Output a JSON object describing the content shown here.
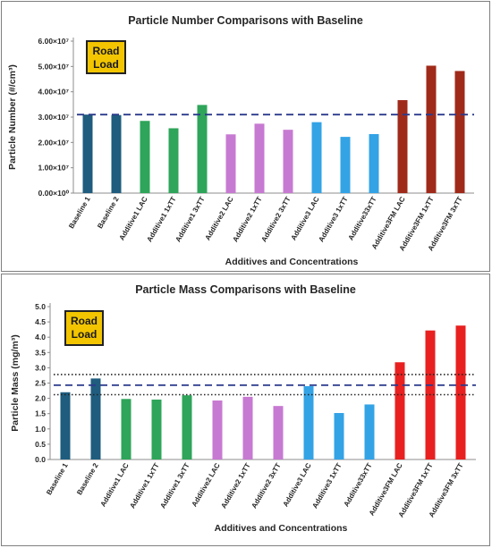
{
  "chart_data": [
    {
      "type": "bar",
      "title": "Particle Number Comparisons with Baseline",
      "xlabel": "Additives and Concentrations",
      "ylabel": "Particle Number (#/cm³)",
      "ylim": [
        0,
        60000000
      ],
      "y_ticks": [
        0,
        10000000,
        20000000,
        30000000,
        40000000,
        50000000,
        60000000
      ],
      "y_tick_labels": [
        "0.00×10⁰",
        "1.00×10⁷",
        "2.00×10⁷",
        "3.00×10⁷",
        "4.00×10⁷",
        "5.00×10⁷",
        "6.00×10⁷"
      ],
      "categories": [
        "Baseline 1",
        "Baseline 2",
        "Additive1 LAC",
        "Additive1 1xTT",
        "Additive1 3xTT",
        "Additive2 LAC",
        "Additive2 1xTT",
        "Additive2 3xTT",
        "Additive3 LAC",
        "Additive3 1xTT",
        "Additive33xTT",
        "Additive3FM LAC",
        "Additive3FM 1xTT",
        "Additive3FM 3xTT"
      ],
      "values": [
        31000000,
        30800000,
        28500000,
        25600000,
        34800000,
        23200000,
        27400000,
        25000000,
        28000000,
        22200000,
        23300000,
        36700000,
        50300000,
        48200000
      ],
      "colors": [
        "#1f5c7e",
        "#1f5c7e",
        "#2ea55a",
        "#2ea55a",
        "#2ea55a",
        "#c77ad1",
        "#c77ad1",
        "#c77ad1",
        "#33a3e6",
        "#33a3e6",
        "#33a3e6",
        "#a02a1a",
        "#a02a1a",
        "#a02a1a"
      ],
      "reference_lines": [
        {
          "value": 31000000,
          "style": "dashed",
          "color": "#2b3a8c"
        }
      ],
      "badge": {
        "line1": "Road",
        "line2": "Load",
        "fill": "#f2c500"
      },
      "grid": false
    },
    {
      "type": "bar",
      "title": "Particle Mass Comparisons with Baseline",
      "xlabel": "Additives and Concentrations",
      "ylabel": "Particle Mass (mg/m³)",
      "ylim": [
        0,
        5.0
      ],
      "y_ticks": [
        0,
        0.5,
        1.0,
        1.5,
        2.0,
        2.5,
        3.0,
        3.5,
        4.0,
        4.5,
        5.0
      ],
      "y_tick_labels": [
        "0.0",
        "0.5",
        "1.0",
        "1.5",
        "2.0",
        "2.5",
        "3.0",
        "3.5",
        "4.0",
        "4.5",
        "5.0"
      ],
      "categories": [
        "Baseline 1",
        "Baseline 2",
        "Additive1 LAC",
        "Additive1 1xTT",
        "Additive1 3xTT",
        "Additive2 LAC",
        "Additive2 1xTT",
        "Additive2 3xTT",
        "Additive3 LAC",
        "Additive3 1xTT",
        "Additive33xTT",
        "Additive3FM LAC",
        "Additive3FM 1xTT",
        "Additive3FM 3xTT"
      ],
      "values": [
        2.2,
        2.65,
        1.98,
        1.96,
        2.1,
        1.93,
        2.05,
        1.75,
        2.4,
        1.52,
        1.8,
        3.18,
        4.22,
        4.38
      ],
      "colors": [
        "#1f5c7e",
        "#1f5c7e",
        "#2ea55a",
        "#2ea55a",
        "#2ea55a",
        "#c77ad1",
        "#c77ad1",
        "#c77ad1",
        "#33a3e6",
        "#33a3e6",
        "#33a3e6",
        "#e82020",
        "#e82020",
        "#e82020"
      ],
      "reference_lines": [
        {
          "value": 2.43,
          "style": "dashed",
          "color": "#2b3a8c"
        },
        {
          "value": 2.78,
          "style": "dotted",
          "color": "#222222"
        },
        {
          "value": 2.12,
          "style": "dotted",
          "color": "#222222"
        }
      ],
      "badge": {
        "line1": "Road",
        "line2": "Load",
        "fill": "#f2c500"
      },
      "grid": false
    }
  ]
}
